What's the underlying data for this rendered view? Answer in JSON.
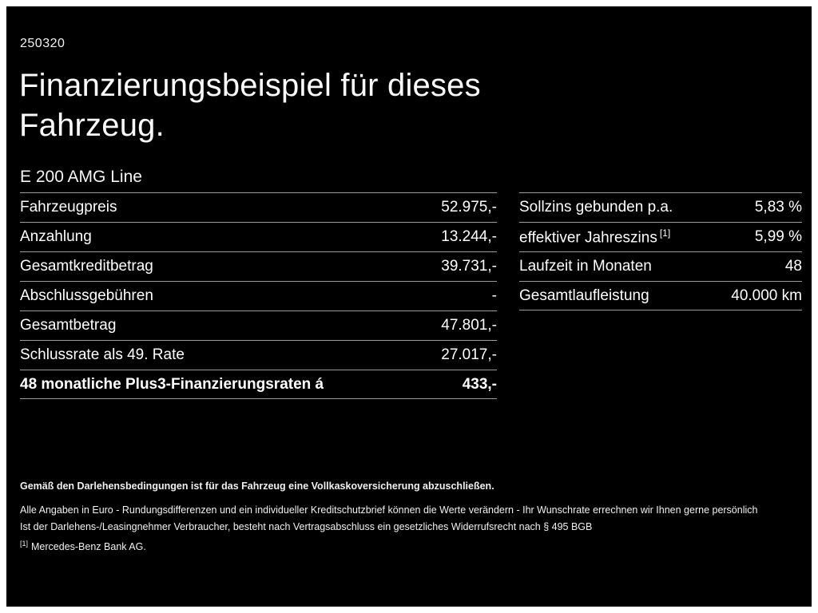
{
  "page": {
    "ref_number": "250320",
    "title_line1": "Finanzierungsbeispiel für dieses",
    "title_line2": "Fahrzeug.",
    "model": "E 200 AMG Line",
    "background_color": "#000000",
    "text_color": "#ffffff",
    "divider_color": "#9c9c9c"
  },
  "left_table": {
    "rows": [
      {
        "label": "Fahrzeugpreis",
        "value": "52.975,-"
      },
      {
        "label": "Anzahlung",
        "value": "13.244,-"
      },
      {
        "label": "Gesamtkreditbetrag",
        "value": "39.731,-"
      },
      {
        "label": "Abschlussgebühren",
        "value": "-"
      },
      {
        "label": "Gesamtbetrag",
        "value": "47.801,-"
      },
      {
        "label": "Schlussrate als 49. Rate",
        "value": "27.017,-"
      },
      {
        "label": "48 monatliche Plus3-Finanzierungsraten á",
        "value": "433,-"
      }
    ]
  },
  "right_table": {
    "rows": [
      {
        "label": "Sollzins gebunden p.a.",
        "value": "5,83 %"
      },
      {
        "label": "effektiver Jahreszins",
        "sup": "[1]",
        "value": "5,99 %"
      },
      {
        "label": "Laufzeit in Monaten",
        "value": "48"
      },
      {
        "label": "Gesamtlaufleistung",
        "value": "40.000 km"
      }
    ]
  },
  "footnotes": {
    "bold_line": "Gemäß den Darlehensbedingungen ist für das Fahrzeug eine Vollkaskoversicherung abzuschließen.",
    "line2": "Alle Angaben in Euro - Rundungsdifferenzen und ein individueller Kreditschutzbrief können die Werte verändern - Ihr Wunschrate errechnen wir Ihnen gerne persönlich",
    "line3": "Ist der Darlehens-/Leasingnehmer Verbraucher, besteht nach Vertragsabschluss ein gesetzliches Widerrufsrecht nach § 495 BGB",
    "marker": "[1]",
    "line4": "Mercedes-Benz Bank AG."
  }
}
